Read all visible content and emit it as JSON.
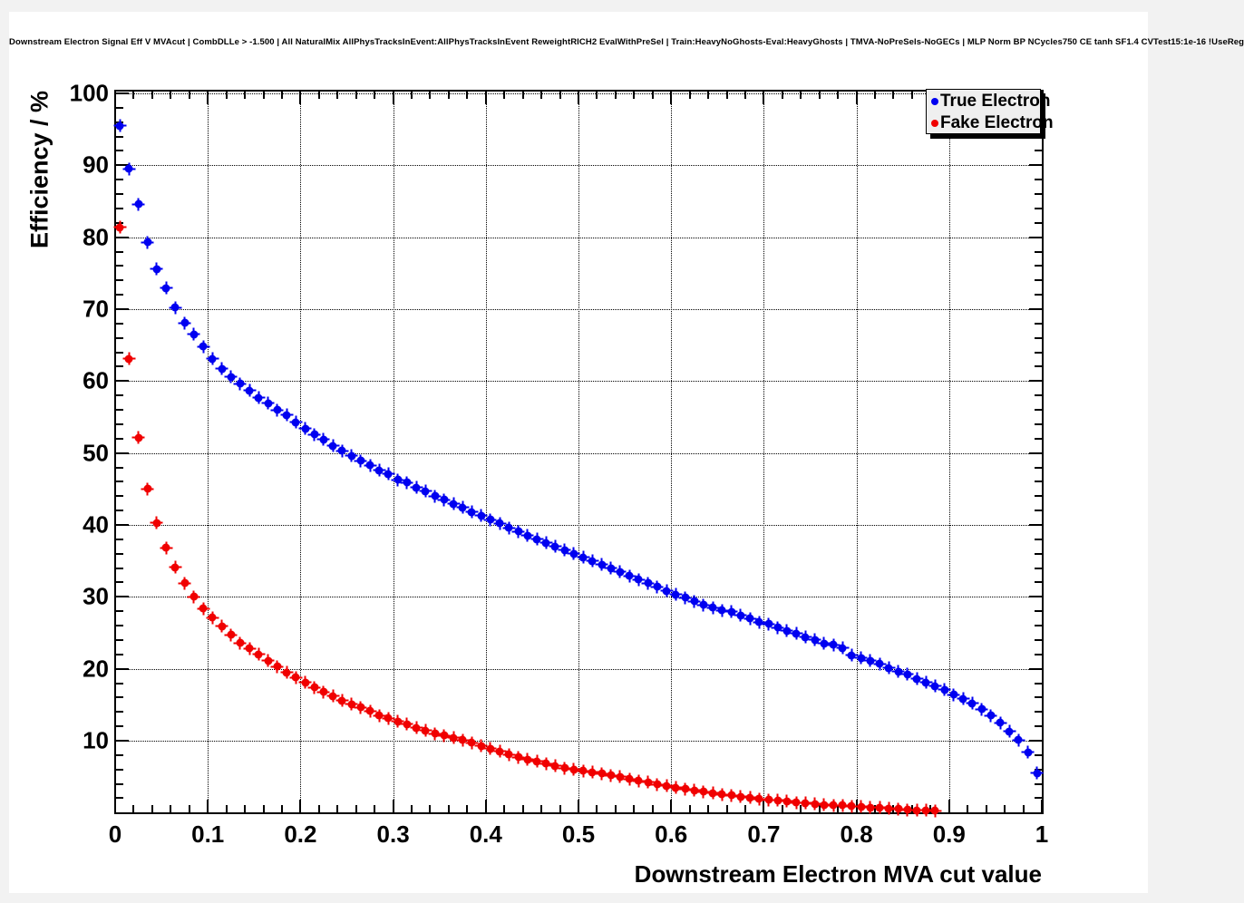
{
  "canvas": {
    "background": "#ffffff",
    "backdrop": "#f2f2f2",
    "axis_color": "#000000",
    "grid_style": "dotted"
  },
  "chart_data": {
    "type": "scatter",
    "title": "Downstream Electron Signal Eff V MVAcut | CombDLLe > -1.500 | All NaturalMix AllPhysTracksInEvent:AllPhysTracksInEvent ReweightRICH2 EvalWithPreSel | Train:HeavyNoGhosts-Eval:HeavyGhosts | TMVA-NoPreSels-NoGECs | MLP Norm BP NCycles750 CE tanh SF1.4 CVTest15:1e-16 !UseReg",
    "xlabel": "Downstream Electron MVA cut value",
    "ylabel": "Efficiency / %",
    "xlim": [
      0,
      1
    ],
    "ylim": [
      0,
      100
    ],
    "grid": true,
    "legend_position": "top-right",
    "x_ticklabels": [
      "0",
      "0.1",
      "0.2",
      "0.3",
      "0.4",
      "0.5",
      "0.6",
      "0.7",
      "0.8",
      "0.9",
      "1"
    ],
    "y_ticklabels": [
      "10",
      "20",
      "30",
      "40",
      "50",
      "60",
      "70",
      "80",
      "90",
      "100"
    ],
    "x_major_step": 0.1,
    "x_minor_step": 0.02,
    "y_major_step": 10,
    "y_minor_step": 2,
    "series": [
      {
        "name": "True Electron",
        "color": "#0000f0",
        "marker": "filled-circle-with-error-bars",
        "x_start": 0.005,
        "x_step": 0.01,
        "values": [
          95.5,
          89.5,
          84.6,
          79.3,
          75.6,
          72.9,
          70.2,
          68.1,
          66.5,
          64.8,
          63.1,
          61.7,
          60.6,
          59.6,
          58.7,
          57.7,
          56.9,
          56.0,
          55.3,
          54.3,
          53.4,
          52.6,
          51.9,
          51.0,
          50.3,
          49.6,
          48.9,
          48.3,
          47.6,
          47.1,
          46.3,
          45.9,
          45.2,
          44.7,
          44.0,
          43.5,
          42.9,
          42.4,
          41.8,
          41.3,
          40.7,
          40.2,
          39.6,
          39.1,
          38.5,
          38.0,
          37.5,
          37.0,
          36.5,
          36.0,
          35.5,
          35.0,
          34.5,
          34.0,
          33.5,
          32.9,
          32.4,
          31.9,
          31.4,
          30.8,
          30.3,
          29.9,
          29.4,
          28.9,
          28.5,
          28.1,
          27.9,
          27.4,
          27.0,
          26.5,
          26.2,
          25.7,
          25.3,
          24.9,
          24.4,
          24.0,
          23.5,
          23.3,
          22.9,
          21.9,
          21.5,
          21.1,
          20.7,
          20.1,
          19.6,
          19.2,
          18.6,
          18.1,
          17.6,
          17.1,
          16.4,
          15.8,
          15.2,
          14.4,
          13.5,
          12.5,
          11.3,
          10.1,
          8.4,
          5.5
        ]
      },
      {
        "name": "Fake Electron",
        "color": "#f00000",
        "marker": "filled-circle-with-error-bars",
        "x_start": 0.005,
        "x_step": 0.01,
        "values": [
          81.4,
          63.1,
          52.1,
          45.0,
          40.3,
          36.8,
          34.1,
          31.9,
          30.0,
          28.4,
          27.1,
          25.9,
          24.7,
          23.6,
          22.8,
          22.0,
          21.1,
          20.3,
          19.5,
          18.8,
          18.1,
          17.4,
          16.8,
          16.2,
          15.6,
          15.1,
          14.6,
          14.1,
          13.5,
          13.1,
          12.7,
          12.3,
          11.8,
          11.4,
          11.0,
          10.7,
          10.4,
          10.1,
          9.7,
          9.3,
          8.9,
          8.5,
          8.1,
          7.7,
          7.4,
          7.1,
          6.8,
          6.5,
          6.2,
          6.0,
          5.8,
          5.6,
          5.4,
          5.2,
          5.0,
          4.7,
          4.4,
          4.2,
          3.9,
          3.7,
          3.5,
          3.3,
          3.1,
          2.9,
          2.7,
          2.5,
          2.4,
          2.2,
          2.1,
          1.9,
          1.8,
          1.7,
          1.6,
          1.4,
          1.3,
          1.2,
          1.1,
          1.0,
          1.0,
          0.9,
          0.8,
          0.7,
          0.7,
          0.6,
          0.5,
          0.4,
          0.35,
          0.3,
          0.25
        ]
      }
    ]
  },
  "legend": {
    "entries": [
      {
        "label": "True Electron",
        "color": "#0000f0"
      },
      {
        "label": "Fake Electron",
        "color": "#f00000"
      }
    ]
  }
}
